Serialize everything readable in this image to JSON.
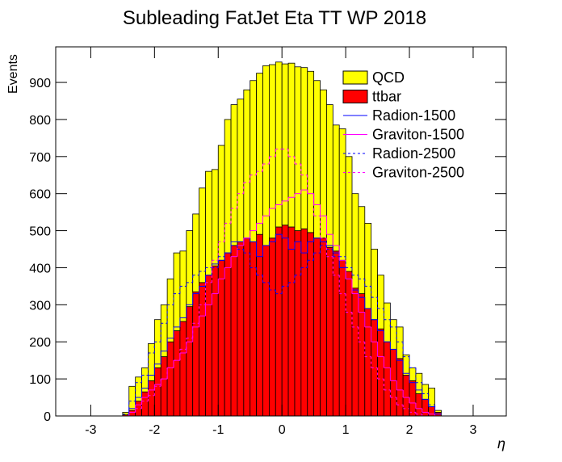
{
  "chart_data": {
    "type": "histogram",
    "title": "Subleading FatJet Eta TT WP 2018",
    "x_label": "η",
    "y_label": "Events",
    "bins": [
      -2.5,
      -2.4,
      -2.3,
      -2.2,
      -2.1,
      -2.0,
      -1.9,
      -1.8,
      -1.7,
      -1.6,
      -1.5,
      -1.4,
      -1.3,
      -1.2,
      -1.1,
      -1.0,
      -0.9,
      -0.8,
      -0.7,
      -0.6,
      -0.5,
      -0.4,
      -0.3,
      -0.2,
      -0.1,
      0.0,
      0.1,
      0.2,
      0.3,
      0.4,
      0.5,
      0.6,
      0.7,
      0.8,
      0.9,
      1.0,
      1.1,
      1.2,
      1.3,
      1.4,
      1.5,
      1.6,
      1.7,
      1.8,
      1.9,
      2.0,
      2.1,
      2.2,
      2.3,
      2.4,
      2.5
    ],
    "xlim": [
      -3.55,
      3.52
    ],
    "ylim": [
      0,
      996
    ],
    "xticks": [
      -3,
      -2,
      -1,
      0,
      1,
      2,
      3
    ],
    "yticks": [
      0,
      100,
      200,
      300,
      400,
      500,
      600,
      700,
      800,
      900
    ],
    "legend": "upper right",
    "series": [
      {
        "name": "ttbar",
        "color": "#ff0000",
        "style": "stacked-fill",
        "values": [
          3,
          15,
          40,
          65,
          95,
          130,
          160,
          200,
          230,
          255,
          295,
          335,
          360,
          380,
          405,
          420,
          440,
          460,
          470,
          480,
          470,
          490,
          460,
          480,
          510,
          515,
          510,
          500,
          505,
          495,
          480,
          480,
          455,
          445,
          420,
          390,
          345,
          330,
          290,
          260,
          235,
          200,
          180,
          155,
          110,
          95,
          60,
          45,
          25,
          10
        ]
      },
      {
        "name": "QCD",
        "color": "#ffff00",
        "style": "stacked-fill",
        "values": [
          7,
          65,
          65,
          65,
          100,
          130,
          140,
          170,
          210,
          190,
          205,
          210,
          255,
          280,
          260,
          310,
          360,
          380,
          385,
          400,
          435,
          435,
          485,
          468,
          445,
          435,
          442,
          442,
          435,
          435,
          425,
          400,
          385,
          340,
          355,
          310,
          255,
          235,
          230,
          190,
          145,
          105,
          80,
          85,
          55,
          35,
          55,
          40,
          50,
          5
        ]
      },
      {
        "name": "Radion-1500",
        "color": "#0000ff",
        "style": "solid",
        "values": [
          0,
          20,
          50,
          75,
          110,
          140,
          175,
          210,
          240,
          265,
          300,
          330,
          350,
          380,
          410,
          420,
          440,
          470,
          470,
          480,
          470,
          430,
          460,
          470,
          490,
          480,
          450,
          470,
          440,
          470,
          480,
          470,
          460,
          440,
          400,
          370,
          340,
          320,
          290,
          260,
          230,
          200,
          180,
          150,
          115,
          90,
          70,
          45,
          25,
          5
        ]
      },
      {
        "name": "Graviton-1500",
        "color": "#ff00ff",
        "style": "solid",
        "values": [
          0,
          10,
          30,
          50,
          70,
          85,
          100,
          130,
          150,
          170,
          200,
          240,
          270,
          300,
          330,
          370,
          400,
          430,
          460,
          480,
          500,
          520,
          540,
          560,
          570,
          580,
          590,
          600,
          610,
          600,
          570,
          540,
          490,
          460,
          420,
          370,
          330,
          280,
          240,
          200,
          160,
          130,
          95,
          70,
          50,
          35,
          20,
          10,
          5,
          0
        ]
      },
      {
        "name": "Radion-2500",
        "color": "#0000ff",
        "style": "dashed",
        "values": [
          5,
          40,
          90,
          110,
          170,
          200,
          250,
          300,
          330,
          350,
          360,
          380,
          390,
          400,
          400,
          430,
          440,
          460,
          450,
          440,
          400,
          380,
          360,
          340,
          330,
          350,
          360,
          380,
          400,
          420,
          440,
          460,
          450,
          430,
          430,
          400,
          380,
          370,
          350,
          320,
          290,
          260,
          240,
          200,
          160,
          130,
          90,
          60,
          30,
          5
        ]
      },
      {
        "name": "Graviton-2500",
        "color": "#ff00ff",
        "style": "dashed",
        "values": [
          0,
          10,
          20,
          40,
          55,
          80,
          100,
          130,
          150,
          180,
          210,
          250,
          300,
          360,
          420,
          470,
          520,
          560,
          600,
          630,
          650,
          660,
          680,
          700,
          720,
          720,
          700,
          680,
          650,
          600,
          540,
          480,
          430,
          380,
          330,
          280,
          240,
          200,
          160,
          130,
          100,
          70,
          50,
          30,
          20,
          10,
          5,
          0,
          0,
          0
        ]
      }
    ]
  }
}
